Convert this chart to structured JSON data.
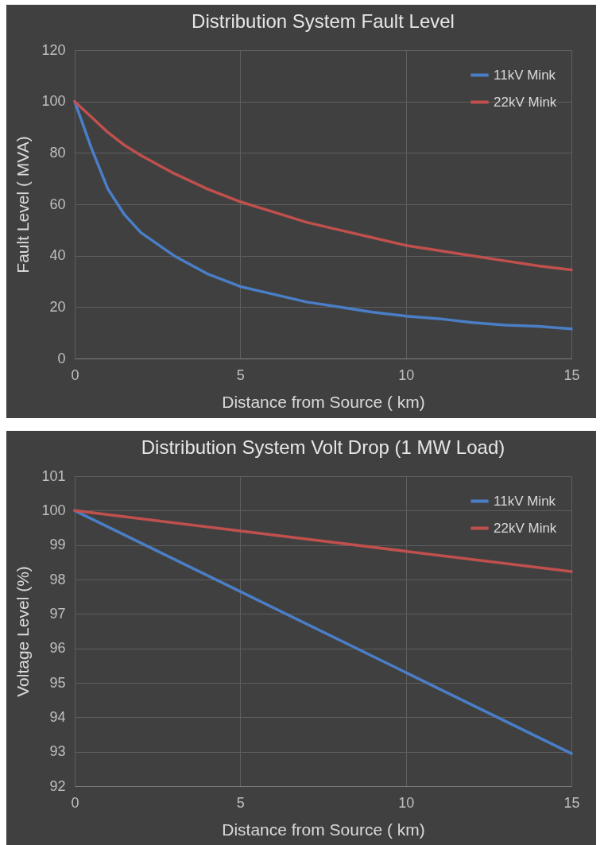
{
  "chart_data": [
    {
      "type": "line",
      "title": "Distribution System Fault Level",
      "xlabel": "Distance from Source ( km)",
      "ylabel": "Fault Level ( MVA)",
      "xlim": [
        0,
        15
      ],
      "xticks": [
        0,
        5,
        10,
        15
      ],
      "ylim": [
        0,
        120
      ],
      "yticks": [
        0,
        20,
        40,
        60,
        80,
        100,
        120
      ],
      "grid": true,
      "legend": "top right",
      "line_style": "solid",
      "x": [
        0,
        0.5,
        1,
        1.5,
        2,
        3,
        4,
        5,
        6,
        7,
        8,
        9,
        10,
        11,
        12,
        13,
        14,
        15
      ],
      "series": [
        {
          "name": "11kV Mink",
          "color": "#4a7ec6",
          "values": [
            100,
            82,
            66,
            56,
            49,
            40,
            33,
            28,
            25,
            22,
            20,
            18,
            16.5,
            15.5,
            14,
            13,
            12.5,
            11.5
          ]
        },
        {
          "name": "22kV Mink",
          "color": "#c0504d",
          "values": [
            100,
            94,
            88,
            83,
            79,
            72,
            66,
            61,
            57,
            53,
            50,
            47,
            44,
            42,
            40,
            38,
            36,
            34.5
          ]
        }
      ]
    },
    {
      "type": "line",
      "title": "Distribution System Volt Drop (1 MW Load)",
      "xlabel": "Distance from Source ( km)",
      "ylabel": "Voltage Level (%)",
      "xlim": [
        0,
        15
      ],
      "xticks": [
        0,
        5,
        10,
        15
      ],
      "ylim": [
        92,
        101
      ],
      "yticks": [
        92,
        93,
        94,
        95,
        96,
        97,
        98,
        99,
        100,
        101
      ],
      "grid": true,
      "legend": "top right",
      "line_style": "solid",
      "x": [
        0,
        15
      ],
      "series": [
        {
          "name": "11kV Mink",
          "color": "#4a7ec6",
          "values": [
            100,
            92.95
          ]
        },
        {
          "name": "22kV Mink",
          "color": "#c0504d",
          "values": [
            100,
            98.23
          ]
        }
      ]
    }
  ]
}
